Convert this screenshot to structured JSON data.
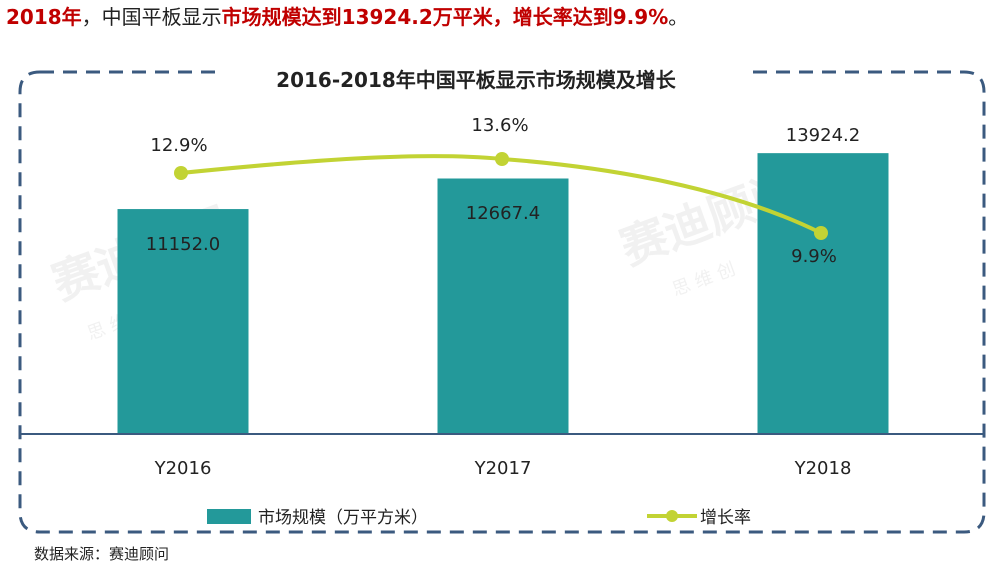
{
  "headline": {
    "part1": "2018年",
    "part2": "，中国平板显示",
    "part3": "市场规模达到13924.2万平米，增长率达到9.9%",
    "part4": "。"
  },
  "watermark": {
    "brand": "赛迪顾问",
    "slogan_left": "思 维 创 造 世 界",
    "slogan_right": "思 维 创"
  },
  "source": "数据来源：赛迪顾问",
  "colors": {
    "bar": "#23999a",
    "line": "#c2d334",
    "accent": "#c00000",
    "frame": "#3b5a7f",
    "axis": "#3b5a7f"
  },
  "chart_data": {
    "type": "bar",
    "title": "2016-2018年中国平板显示市场规模及增长",
    "categories": [
      "Y2016",
      "Y2017",
      "Y2018"
    ],
    "series": [
      {
        "name": "市场规模（万平方米）",
        "type": "bar",
        "values": [
          11152.0,
          12667.4,
          13924.2
        ],
        "labels": [
          "11152.0",
          "12667.4",
          "13924.2"
        ]
      },
      {
        "name": "增长率",
        "type": "line",
        "values": [
          12.9,
          13.6,
          9.9
        ],
        "labels": [
          "12.9%",
          "13.6%",
          "9.9%"
        ]
      }
    ],
    "legend_position": "bottom",
    "grid": false
  }
}
